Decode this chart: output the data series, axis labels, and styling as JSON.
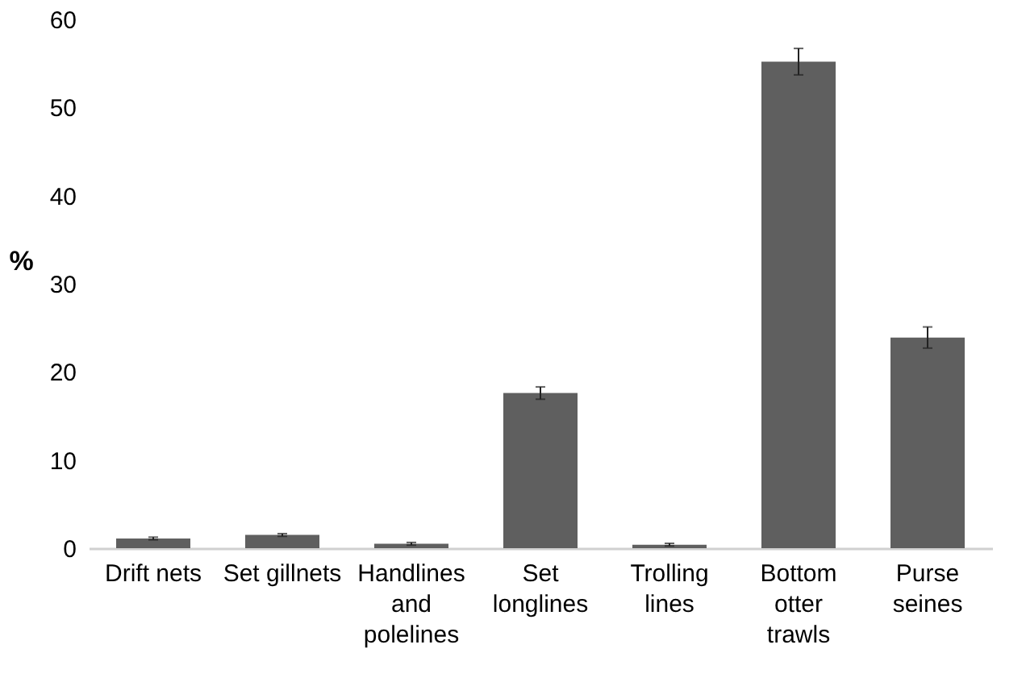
{
  "chart_data": {
    "type": "bar",
    "ylabel": "%",
    "categories": [
      "Drift nets",
      "Set gillnets",
      "Handlines and polelines",
      "Set longlines",
      "Trolling lines",
      "Bottom otter trawls",
      "Purse seines"
    ],
    "values": [
      1.1,
      1.5,
      0.5,
      17.6,
      0.4,
      55.2,
      23.9
    ],
    "errors": [
      0.15,
      0.15,
      0.15,
      0.7,
      0.15,
      1.5,
      1.2
    ],
    "color": "#5f5f5f",
    "ylim": [
      0,
      60
    ],
    "yticks": [
      0,
      10,
      20,
      30,
      40,
      50,
      60
    ],
    "grid": false
  }
}
